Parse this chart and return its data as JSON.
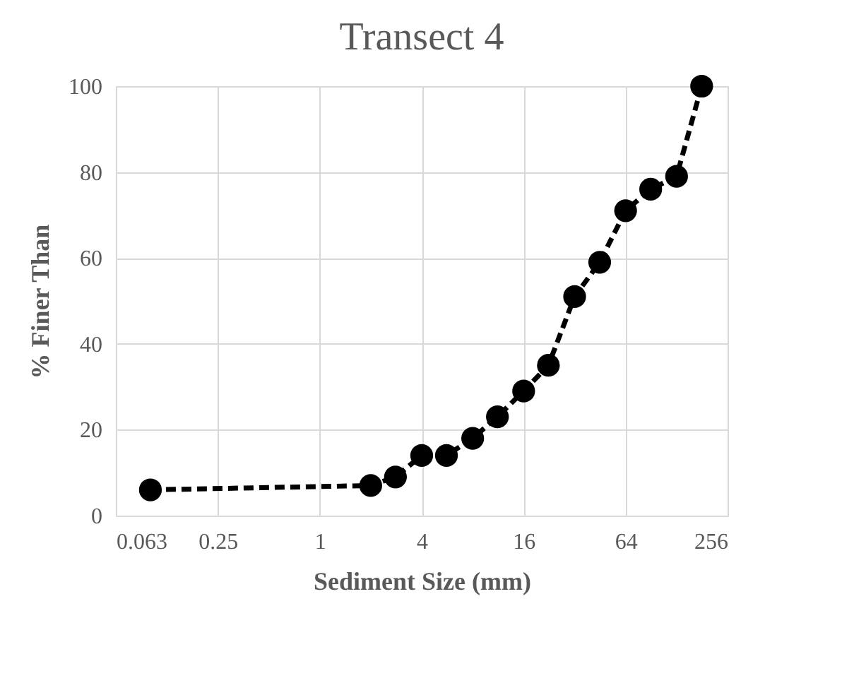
{
  "chart_data": {
    "type": "line",
    "title": "Transect 4",
    "xlabel": "Sediment Size (mm)",
    "ylabel": "% Finer Than",
    "x": [
      0.1,
      2,
      2.8,
      4,
      5.6,
      8,
      11.2,
      16,
      22.4,
      32,
      45,
      64,
      90,
      128,
      180
    ],
    "series": [
      {
        "color": "#000000",
        "values": [
          6,
          7,
          9,
          14,
          14,
          18,
          23,
          29,
          35,
          51,
          59,
          71,
          76,
          79,
          100
        ]
      }
    ],
    "log": "x",
    "xlim": [
      0.0625,
      256
    ],
    "xticks": [
      {
        "value": 0.0625,
        "label": "0.063"
      },
      0.25,
      1,
      4,
      16,
      64,
      256
    ],
    "ylim": [
      0,
      100
    ],
    "yticks": [
      0,
      20,
      40,
      60,
      80,
      100
    ],
    "grid": true,
    "marker": "circle",
    "line_style": "dashed"
  }
}
